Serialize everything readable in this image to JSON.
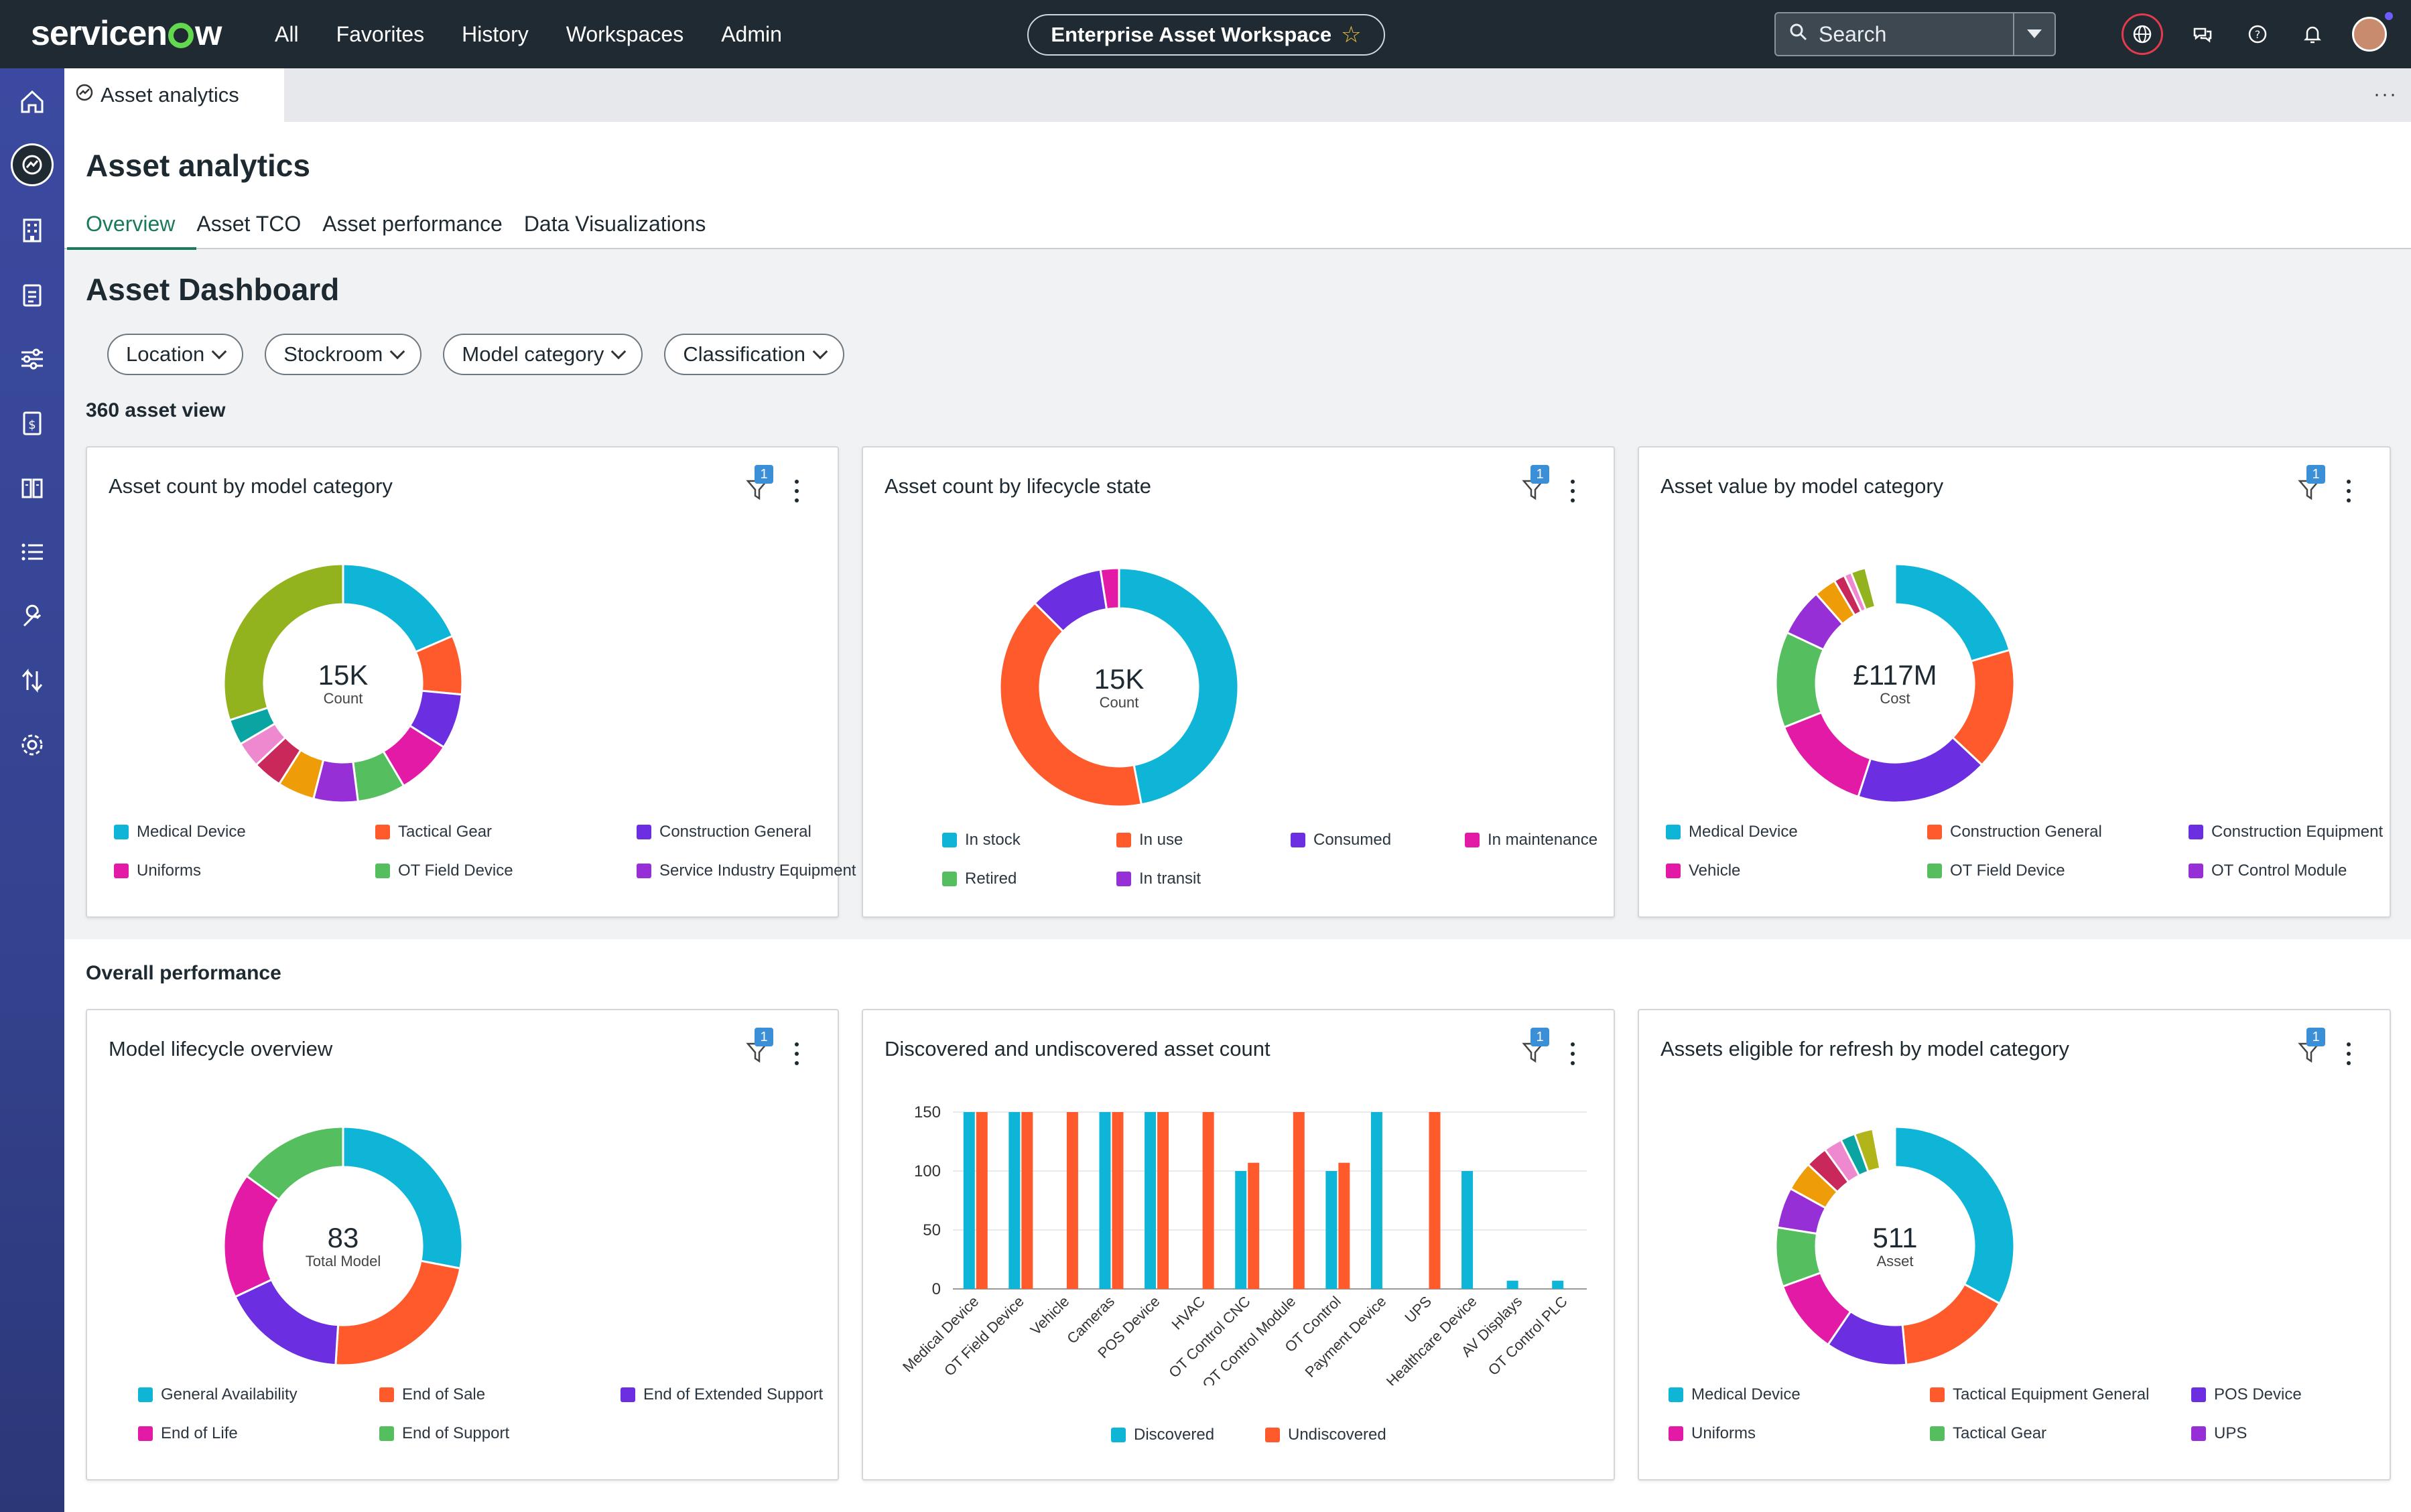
{
  "topnav": {
    "logo": "servicenow",
    "items": [
      "All",
      "Favorites",
      "History",
      "Workspaces",
      "Admin"
    ],
    "workspace": "Enterprise Asset Workspace",
    "search_placeholder": "Search"
  },
  "tab": {
    "label": "Asset analytics"
  },
  "page": {
    "title": "Asset analytics",
    "subtabs": [
      "Overview",
      "Asset TCO",
      "Asset performance",
      "Data Visualizations"
    ],
    "active_subtab": "Overview"
  },
  "dashboard": {
    "title": "Asset Dashboard",
    "filters": [
      "Location",
      "Stockroom",
      "Model category",
      "Classification"
    ],
    "section1": "360 asset view",
    "section2": "Overall performance"
  },
  "filter_badge": "1",
  "colors": {
    "cyan": "#0fb5d7",
    "orange": "#ff5a2c",
    "purple": "#6b2ee0",
    "magenta": "#e31aa5",
    "green": "#55bf5f",
    "violet": "#9630d6",
    "olive": "#93b31e",
    "teal": "#0aa5a3",
    "pink": "#ee89cf",
    "crimson": "#c8285a",
    "amber": "#ee9c07",
    "gold": "#b2b51a"
  },
  "cards": [
    {
      "title": "Asset count by model category",
      "center_value": "15K",
      "center_label": "Count",
      "segments": [
        {
          "pct": 18.5,
          "color": "#0fb5d7"
        },
        {
          "pct": 8,
          "color": "#ff5a2c"
        },
        {
          "pct": 7.5,
          "color": "#6b2ee0"
        },
        {
          "pct": 7.5,
          "color": "#e31aa5"
        },
        {
          "pct": 6.5,
          "color": "#55bf5f"
        },
        {
          "pct": 6,
          "color": "#9630d6"
        },
        {
          "pct": 5,
          "color": "#ee9c07"
        },
        {
          "pct": 4,
          "color": "#c8285a"
        },
        {
          "pct": 3.5,
          "color": "#ee89cf"
        },
        {
          "pct": 3.5,
          "color": "#0aa5a3"
        },
        {
          "pct": 30,
          "color": "#93b31e"
        }
      ],
      "legend": [
        {
          "label": "Medical Device",
          "color": "#0fb5d7"
        },
        {
          "label": "Tactical Gear",
          "color": "#ff5a2c"
        },
        {
          "label": "Construction General",
          "color": "#6b2ee0"
        },
        {
          "label": "Uniforms",
          "color": "#e31aa5"
        },
        {
          "label": "OT Field Device",
          "color": "#55bf5f"
        },
        {
          "label": "Service Industry Equipment",
          "color": "#9630d6"
        }
      ]
    },
    {
      "title": "Asset count by lifecycle state",
      "center_value": "15K",
      "center_label": "Count",
      "segments": [
        {
          "pct": 47,
          "color": "#0fb5d7"
        },
        {
          "pct": 40.5,
          "color": "#ff5a2c"
        },
        {
          "pct": 10,
          "color": "#6b2ee0"
        },
        {
          "pct": 2.5,
          "color": "#e31aa5"
        }
      ],
      "legend": [
        {
          "label": "In stock",
          "color": "#0fb5d7"
        },
        {
          "label": "In use",
          "color": "#ff5a2c"
        },
        {
          "label": "Consumed",
          "color": "#6b2ee0"
        },
        {
          "label": "In maintenance",
          "color": "#e31aa5"
        },
        {
          "label": "Retired",
          "color": "#55bf5f"
        },
        {
          "label": "In transit",
          "color": "#9630d6"
        }
      ]
    },
    {
      "title": "Asset value by model category",
      "center_value": "£117M",
      "center_label": "Cost",
      "segments": [
        {
          "pct": 20.5,
          "color": "#0fb5d7"
        },
        {
          "pct": 16.5,
          "color": "#ff5a2c"
        },
        {
          "pct": 18,
          "color": "#6b2ee0"
        },
        {
          "pct": 14,
          "color": "#e31aa5"
        },
        {
          "pct": 13,
          "color": "#55bf5f"
        },
        {
          "pct": 6.5,
          "color": "#9630d6"
        },
        {
          "pct": 3,
          "color": "#ee9c07"
        },
        {
          "pct": 1.5,
          "color": "#c8285a"
        },
        {
          "pct": 1,
          "color": "#ee89cf"
        },
        {
          "pct": 2,
          "color": "#93b31e"
        },
        {
          "pct": 4,
          "color": "#ffffff"
        }
      ],
      "legend": [
        {
          "label": "Medical Device",
          "color": "#0fb5d7"
        },
        {
          "label": "Construction General",
          "color": "#ff5a2c"
        },
        {
          "label": "Construction Equipment",
          "color": "#6b2ee0"
        },
        {
          "label": "Vehicle",
          "color": "#e31aa5"
        },
        {
          "label": "OT Field Device",
          "color": "#55bf5f"
        },
        {
          "label": "OT Control Module",
          "color": "#9630d6"
        }
      ]
    },
    {
      "title": "Model lifecycle overview",
      "center_value": "83",
      "center_label": "Total Model",
      "segments": [
        {
          "pct": 28,
          "color": "#0fb5d7"
        },
        {
          "pct": 23,
          "color": "#ff5a2c"
        },
        {
          "pct": 17,
          "color": "#6b2ee0"
        },
        {
          "pct": 17,
          "color": "#e31aa5"
        },
        {
          "pct": 15,
          "color": "#55bf5f"
        }
      ],
      "legend": [
        {
          "label": "General Availability",
          "color": "#0fb5d7"
        },
        {
          "label": "End of Sale",
          "color": "#ff5a2c"
        },
        {
          "label": "End of Extended Support",
          "color": "#6b2ee0"
        },
        {
          "label": "End of Life",
          "color": "#e31aa5"
        },
        {
          "label": "End of Support",
          "color": "#55bf5f"
        }
      ]
    },
    {
      "title": "Discovered and undiscovered asset count",
      "legend": [
        {
          "label": "Discovered",
          "color": "#0fb5d7"
        },
        {
          "label": "Undiscovered",
          "color": "#ff5a2c"
        }
      ]
    },
    {
      "title": "Assets eligible for refresh by model category",
      "center_value": "511",
      "center_label": "Asset",
      "segments": [
        {
          "pct": 33,
          "color": "#0fb5d7"
        },
        {
          "pct": 15.5,
          "color": "#ff5a2c"
        },
        {
          "pct": 11,
          "color": "#6b2ee0"
        },
        {
          "pct": 10,
          "color": "#e31aa5"
        },
        {
          "pct": 8,
          "color": "#55bf5f"
        },
        {
          "pct": 5.5,
          "color": "#9630d6"
        },
        {
          "pct": 4,
          "color": "#ee9c07"
        },
        {
          "pct": 3,
          "color": "#c8285a"
        },
        {
          "pct": 2.5,
          "color": "#ee89cf"
        },
        {
          "pct": 2,
          "color": "#0aa5a3"
        },
        {
          "pct": 2.5,
          "color": "#b2b51a"
        },
        {
          "pct": 3,
          "color": "#ffffff"
        }
      ],
      "legend": [
        {
          "label": "Medical Device",
          "color": "#0fb5d7"
        },
        {
          "label": "Tactical Equipment General",
          "color": "#ff5a2c"
        },
        {
          "label": "POS Device",
          "color": "#6b2ee0"
        },
        {
          "label": "Uniforms",
          "color": "#e31aa5"
        },
        {
          "label": "Tactical Gear",
          "color": "#55bf5f"
        },
        {
          "label": "UPS",
          "color": "#9630d6"
        }
      ]
    }
  ],
  "chart_data": [
    {
      "type": "pie",
      "title": "Asset count by model category",
      "labels": [
        "Medical Device",
        "Tactical Gear",
        "Construction General",
        "Uniforms",
        "OT Field Device",
        "Service Industry Equipment"
      ],
      "total_label": "15K Count"
    },
    {
      "type": "pie",
      "title": "Asset count by lifecycle state",
      "labels": [
        "In stock",
        "In use",
        "Consumed",
        "In maintenance",
        "Retired",
        "In transit"
      ],
      "total_label": "15K Count"
    },
    {
      "type": "pie",
      "title": "Asset value by model category",
      "labels": [
        "Medical Device",
        "Construction General",
        "Construction Equipment",
        "Vehicle",
        "OT Field Device",
        "OT Control Module"
      ],
      "total_label": "£117M Cost"
    },
    {
      "type": "pie",
      "title": "Model lifecycle overview",
      "labels": [
        "General Availability",
        "End of Sale",
        "End of Extended Support",
        "End of Life",
        "End of Support"
      ],
      "total_label": "83 Total Model"
    },
    {
      "type": "bar",
      "title": "Discovered and undiscovered asset count",
      "categories": [
        "Medical Device",
        "OT Field Device",
        "Vehicle",
        "Cameras",
        "POS Device",
        "HVAC",
        "OT Control CNC",
        "OT Control Module",
        "OT Control",
        "Payment Device",
        "UPS",
        "Healthcare Device",
        "AV Displays",
        "OT Control PLC"
      ],
      "series": [
        {
          "name": "Discovered",
          "values": [
            150,
            150,
            0,
            150,
            150,
            0,
            100,
            0,
            100,
            150,
            0,
            100,
            7,
            7
          ]
        },
        {
          "name": "Undiscovered",
          "values": [
            150,
            150,
            150,
            150,
            150,
            150,
            107,
            150,
            107,
            0,
            150,
            0,
            0,
            0
          ]
        }
      ],
      "ylim": [
        0,
        150
      ],
      "yticks": [
        0,
        50,
        100,
        150
      ]
    },
    {
      "type": "pie",
      "title": "Assets eligible for refresh by model category",
      "labels": [
        "Medical Device",
        "Tactical Equipment General",
        "POS Device",
        "Uniforms",
        "Tactical Gear",
        "UPS"
      ],
      "total_label": "511 Asset"
    }
  ]
}
